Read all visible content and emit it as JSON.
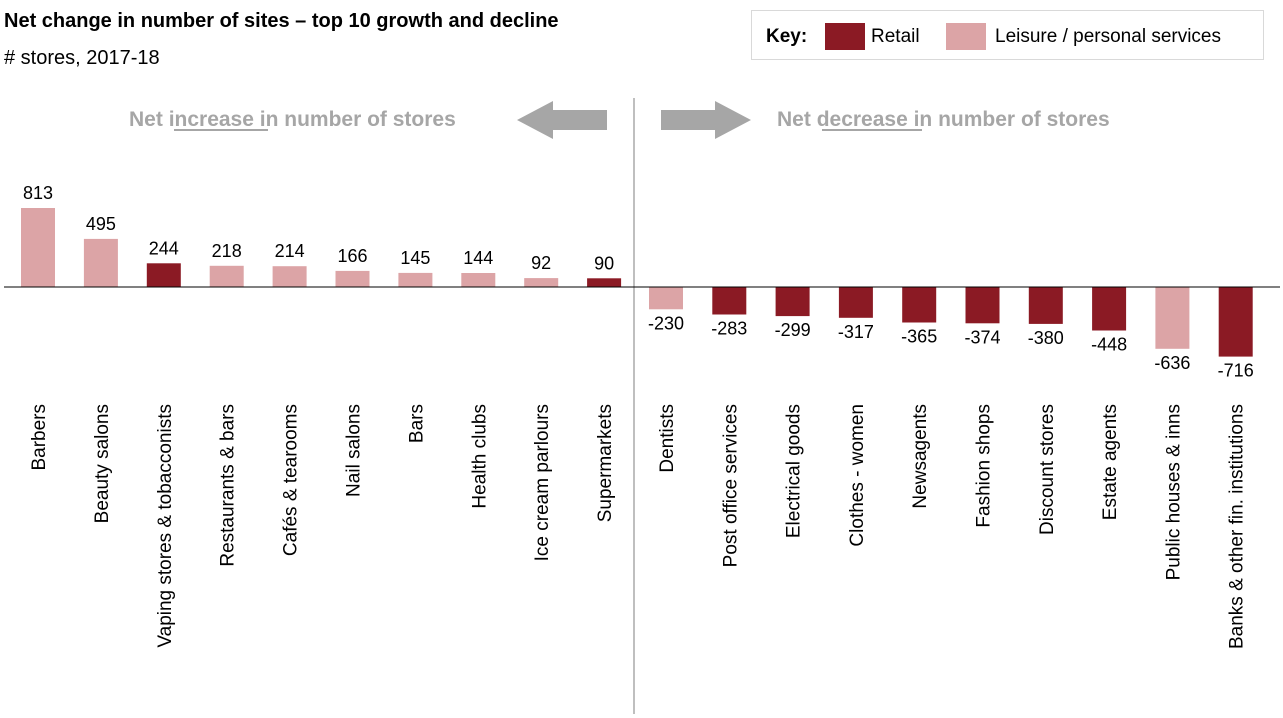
{
  "header": {
    "title": "Net change in number of sites – top 10 growth and decline",
    "subtitle": "# stores, 2017-18"
  },
  "legend": {
    "key_label": "Key:",
    "items": [
      {
        "label": "Retail",
        "color": "#8b1a24"
      },
      {
        "label": "Leisure / personal services",
        "color": "#dca4a6"
      }
    ]
  },
  "panels": {
    "increase": {
      "prefix": "Net ",
      "emphasis": "increase",
      "suffix": " in number of stores"
    },
    "decrease": {
      "prefix": "Net ",
      "emphasis": "decrease",
      "suffix": " in number of stores"
    }
  },
  "colors": {
    "retail": "#8b1a24",
    "leisure": "#dca4a6",
    "arrow": "#a6a6a6",
    "divider": "#bfbfbf"
  },
  "chart_data": {
    "type": "bar",
    "categories": [
      "Barbers",
      "Beauty salons",
      "Vaping stores & tobacconists",
      "Restaurants & bars",
      "Cafés & tearooms",
      "Nail salons",
      "Bars",
      "Health clubs",
      "Ice cream parlours",
      "Supermarkets",
      "Dentists",
      "Post office services",
      "Electrical goods",
      "Clothes - women",
      "Newsagents",
      "Fashion shops",
      "Discount stores",
      "Estate agents",
      "Public houses & inns",
      "Banks & other fin. institutions"
    ],
    "values": [
      813,
      495,
      244,
      218,
      214,
      166,
      145,
      144,
      92,
      90,
      -230,
      -283,
      -299,
      -317,
      -365,
      -374,
      -380,
      -448,
      -636,
      -716
    ],
    "value_labels": [
      "813",
      "495",
      "244",
      "218",
      "214",
      "166",
      "145",
      "144",
      "92",
      "90",
      "-230",
      "-283",
      "-299",
      "-317",
      "-365",
      "-374",
      "-380",
      "-448",
      "-636",
      "-716"
    ],
    "types": [
      "Leisure / personal services",
      "Leisure / personal services",
      "Retail",
      "Leisure / personal services",
      "Leisure / personal services",
      "Leisure / personal services",
      "Leisure / personal services",
      "Leisure / personal services",
      "Leisure / personal services",
      "Retail",
      "Leisure / personal services",
      "Retail",
      "Retail",
      "Retail",
      "Retail",
      "Retail",
      "Retail",
      "Retail",
      "Leisure / personal services",
      "Retail"
    ],
    "ylim": [
      -716,
      813
    ],
    "grid": false
  }
}
